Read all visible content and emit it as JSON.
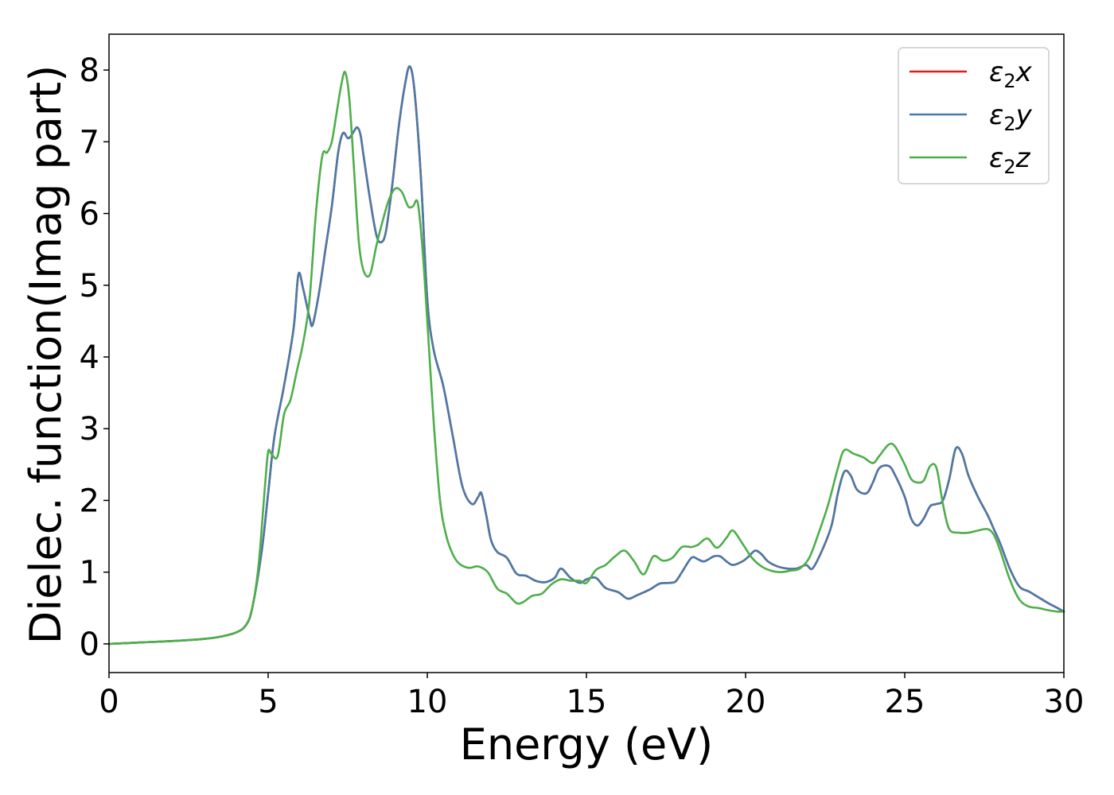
{
  "chart_data": {
    "type": "line",
    "xlabel": "Energy (eV)",
    "ylabel": "Dielec. function(Imag part)",
    "xlim": [
      0,
      30
    ],
    "ylim": [
      -0.4,
      8.5
    ],
    "xticks": [
      0,
      5,
      10,
      15,
      20,
      25,
      30
    ],
    "yticks": [
      0,
      1,
      2,
      3,
      4,
      5,
      6,
      7,
      8
    ],
    "grid": false,
    "legend_position": "top-right",
    "series": [
      {
        "name": "ε₂x",
        "legend_main": "ε",
        "legend_sub": "2",
        "legend_suffix": "x",
        "color": "#e41a1c",
        "x": [
          0,
          1,
          2,
          3,
          3.5,
          4,
          4.3,
          4.5,
          4.8,
          5.0,
          5.2,
          5.5,
          5.8,
          5.95,
          6.1,
          6.3,
          6.4,
          6.6,
          6.8,
          7.0,
          7.2,
          7.35,
          7.5,
          7.6,
          7.7,
          7.8,
          7.9,
          8.0,
          8.2,
          8.4,
          8.55,
          8.7,
          8.9,
          9.1,
          9.3,
          9.45,
          9.6,
          9.8,
          10.0,
          10.2,
          10.5,
          10.8,
          11.1,
          11.4,
          11.6,
          11.7,
          11.85,
          12.0,
          12.2,
          12.5,
          12.8,
          13.1,
          13.4,
          13.7,
          14.0,
          14.2,
          14.5,
          14.8,
          15.0,
          15.3,
          15.6,
          16.0,
          16.3,
          16.6,
          17.0,
          17.3,
          17.6,
          17.8,
          18.0,
          18.3,
          18.5,
          18.7,
          19.0,
          19.2,
          19.4,
          19.6,
          19.9,
          20.1,
          20.3,
          20.5,
          20.7,
          21.0,
          21.3,
          21.6,
          21.9,
          22.1,
          22.4,
          22.7,
          22.9,
          23.1,
          23.3,
          23.5,
          23.8,
          24.0,
          24.2,
          24.5,
          24.7,
          25.0,
          25.2,
          25.4,
          25.6,
          25.8,
          26.0,
          26.2,
          26.4,
          26.6,
          26.8,
          27.0,
          27.3,
          27.6,
          27.8,
          28.0,
          28.3,
          28.6,
          28.9,
          29.2,
          29.5,
          29.8,
          30.0
        ],
        "y": [
          0.0,
          0.02,
          0.04,
          0.07,
          0.1,
          0.16,
          0.26,
          0.5,
          1.3,
          2.1,
          2.9,
          3.6,
          4.4,
          5.15,
          4.95,
          4.55,
          4.45,
          4.9,
          5.5,
          6.1,
          6.85,
          7.12,
          7.05,
          7.08,
          7.15,
          7.2,
          7.1,
          6.8,
          6.2,
          5.7,
          5.6,
          5.75,
          6.4,
          7.2,
          7.8,
          8.05,
          7.7,
          6.5,
          4.8,
          4.1,
          3.6,
          2.9,
          2.2,
          1.95,
          2.05,
          2.1,
          1.8,
          1.45,
          1.28,
          1.2,
          0.98,
          0.95,
          0.88,
          0.86,
          0.92,
          1.05,
          0.92,
          0.85,
          0.9,
          0.92,
          0.78,
          0.72,
          0.63,
          0.68,
          0.76,
          0.84,
          0.85,
          0.87,
          1.0,
          1.2,
          1.18,
          1.15,
          1.22,
          1.22,
          1.15,
          1.1,
          1.15,
          1.22,
          1.3,
          1.25,
          1.15,
          1.08,
          1.05,
          1.05,
          1.1,
          1.05,
          1.3,
          1.65,
          2.1,
          2.4,
          2.35,
          2.15,
          2.1,
          2.25,
          2.45,
          2.48,
          2.35,
          2.05,
          1.75,
          1.65,
          1.75,
          1.92,
          1.95,
          2.0,
          2.3,
          2.72,
          2.65,
          2.35,
          2.05,
          1.8,
          1.6,
          1.4,
          1.05,
          0.8,
          0.73,
          0.65,
          0.57,
          0.5,
          0.45
        ]
      },
      {
        "name": "ε₂y",
        "legend_main": "ε",
        "legend_sub": "2",
        "legend_suffix": "y",
        "color": "#4a7aa8",
        "x": [
          0,
          1,
          2,
          3,
          3.5,
          4,
          4.3,
          4.5,
          4.8,
          5.0,
          5.2,
          5.5,
          5.8,
          5.95,
          6.1,
          6.3,
          6.4,
          6.6,
          6.8,
          7.0,
          7.2,
          7.35,
          7.5,
          7.6,
          7.7,
          7.8,
          7.9,
          8.0,
          8.2,
          8.4,
          8.55,
          8.7,
          8.9,
          9.1,
          9.3,
          9.45,
          9.6,
          9.8,
          10.0,
          10.2,
          10.5,
          10.8,
          11.1,
          11.4,
          11.6,
          11.7,
          11.85,
          12.0,
          12.2,
          12.5,
          12.8,
          13.1,
          13.4,
          13.7,
          14.0,
          14.2,
          14.5,
          14.8,
          15.0,
          15.3,
          15.6,
          16.0,
          16.3,
          16.6,
          17.0,
          17.3,
          17.6,
          17.8,
          18.0,
          18.3,
          18.5,
          18.7,
          19.0,
          19.2,
          19.4,
          19.6,
          19.9,
          20.1,
          20.3,
          20.5,
          20.7,
          21.0,
          21.3,
          21.6,
          21.9,
          22.1,
          22.4,
          22.7,
          22.9,
          23.1,
          23.3,
          23.5,
          23.8,
          24.0,
          24.2,
          24.5,
          24.7,
          25.0,
          25.2,
          25.4,
          25.6,
          25.8,
          26.0,
          26.2,
          26.4,
          26.6,
          26.8,
          27.0,
          27.3,
          27.6,
          27.8,
          28.0,
          28.3,
          28.6,
          28.9,
          29.2,
          29.5,
          29.8,
          30.0
        ],
        "y": [
          0.0,
          0.02,
          0.04,
          0.07,
          0.1,
          0.16,
          0.26,
          0.5,
          1.3,
          2.1,
          2.9,
          3.6,
          4.4,
          5.15,
          4.95,
          4.55,
          4.45,
          4.9,
          5.5,
          6.1,
          6.85,
          7.12,
          7.05,
          7.08,
          7.15,
          7.2,
          7.1,
          6.8,
          6.2,
          5.7,
          5.6,
          5.75,
          6.4,
          7.2,
          7.8,
          8.05,
          7.7,
          6.5,
          4.8,
          4.1,
          3.6,
          2.9,
          2.2,
          1.95,
          2.05,
          2.1,
          1.8,
          1.45,
          1.28,
          1.2,
          0.98,
          0.95,
          0.88,
          0.86,
          0.92,
          1.05,
          0.92,
          0.85,
          0.9,
          0.92,
          0.78,
          0.72,
          0.63,
          0.68,
          0.76,
          0.84,
          0.85,
          0.87,
          1.0,
          1.2,
          1.18,
          1.15,
          1.22,
          1.22,
          1.15,
          1.1,
          1.15,
          1.22,
          1.3,
          1.25,
          1.15,
          1.08,
          1.05,
          1.05,
          1.1,
          1.05,
          1.3,
          1.65,
          2.1,
          2.4,
          2.35,
          2.15,
          2.1,
          2.25,
          2.45,
          2.48,
          2.35,
          2.05,
          1.75,
          1.65,
          1.75,
          1.92,
          1.95,
          2.0,
          2.3,
          2.72,
          2.65,
          2.35,
          2.05,
          1.8,
          1.6,
          1.4,
          1.05,
          0.8,
          0.73,
          0.65,
          0.57,
          0.5,
          0.45
        ]
      },
      {
        "name": "ε₂z",
        "legend_main": "ε",
        "legend_sub": "2",
        "legend_suffix": "z",
        "color": "#4daf4a",
        "x": [
          0,
          1,
          2,
          3,
          3.5,
          4,
          4.3,
          4.5,
          4.7,
          4.9,
          5.0,
          5.1,
          5.3,
          5.5,
          5.7,
          5.9,
          6.1,
          6.3,
          6.5,
          6.7,
          6.85,
          7.0,
          7.15,
          7.3,
          7.42,
          7.55,
          7.7,
          7.85,
          8.0,
          8.2,
          8.4,
          8.6,
          8.8,
          9.0,
          9.2,
          9.4,
          9.55,
          9.7,
          9.85,
          10.0,
          10.2,
          10.4,
          10.6,
          10.8,
          11.0,
          11.3,
          11.6,
          11.9,
          12.2,
          12.5,
          12.8,
          13.0,
          13.3,
          13.6,
          13.9,
          14.2,
          14.5,
          14.8,
          15.0,
          15.3,
          15.6,
          15.9,
          16.2,
          16.5,
          16.8,
          17.1,
          17.4,
          17.7,
          18.0,
          18.3,
          18.5,
          18.8,
          19.1,
          19.4,
          19.6,
          19.9,
          20.2,
          20.5,
          20.8,
          21.1,
          21.4,
          21.7,
          22.0,
          22.3,
          22.6,
          22.9,
          23.1,
          23.4,
          23.7,
          24.0,
          24.2,
          24.5,
          24.7,
          25.0,
          25.2,
          25.4,
          25.6,
          25.8,
          26.0,
          26.2,
          26.4,
          26.7,
          27.0,
          27.3,
          27.6,
          27.8,
          28.0,
          28.3,
          28.6,
          28.9,
          29.2,
          29.5,
          29.8,
          30.0
        ],
        "y": [
          0.0,
          0.02,
          0.04,
          0.07,
          0.1,
          0.16,
          0.26,
          0.5,
          1.1,
          2.2,
          2.68,
          2.65,
          2.62,
          3.2,
          3.4,
          3.8,
          4.2,
          4.8,
          6.0,
          6.8,
          6.85,
          7.0,
          7.4,
          7.8,
          7.97,
          7.6,
          6.6,
          5.6,
          5.2,
          5.15,
          5.55,
          5.9,
          6.2,
          6.35,
          6.3,
          6.1,
          6.1,
          6.15,
          5.5,
          4.5,
          3.1,
          2.0,
          1.5,
          1.25,
          1.12,
          1.06,
          1.08,
          1.0,
          0.77,
          0.7,
          0.57,
          0.58,
          0.67,
          0.7,
          0.83,
          0.9,
          0.88,
          0.88,
          0.85,
          1.03,
          1.1,
          1.22,
          1.3,
          1.15,
          0.97,
          1.22,
          1.16,
          1.2,
          1.35,
          1.35,
          1.38,
          1.47,
          1.34,
          1.48,
          1.58,
          1.4,
          1.2,
          1.08,
          1.02,
          1.0,
          1.02,
          1.05,
          1.2,
          1.55,
          1.95,
          2.45,
          2.7,
          2.65,
          2.6,
          2.52,
          2.62,
          2.78,
          2.75,
          2.5,
          2.3,
          2.25,
          2.28,
          2.48,
          2.45,
          1.95,
          1.6,
          1.55,
          1.55,
          1.58,
          1.6,
          1.52,
          1.3,
          0.9,
          0.62,
          0.52,
          0.5,
          0.47,
          0.45,
          0.45
        ]
      }
    ]
  }
}
